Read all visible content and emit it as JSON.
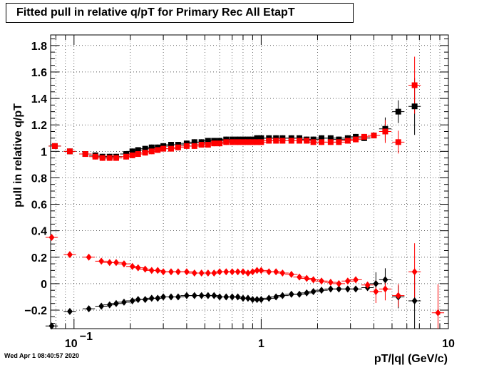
{
  "title": "Fitted pull in relative q/pT for Primary Rec All EtapT",
  "footer": "Wed Apr  1 08:40:57 2020",
  "colors": {
    "series_black": "#000000",
    "series_red": "#ff0000"
  },
  "chart_data": {
    "type": "scatter",
    "xlabel": "pT/|q| (GeV/c)",
    "ylabel": "pull in relative q/pT",
    "x_scale": "log",
    "xlim": [
      0.075,
      10
    ],
    "ylim": [
      -0.34,
      1.88
    ],
    "grid": true,
    "x_tick_labels": [
      "10",
      "1",
      "10"
    ],
    "x_tick_superscript": "−1",
    "y_ticks": [
      -0.2,
      0,
      0.2,
      0.4,
      0.6,
      0.8,
      1,
      1.2,
      1.4,
      1.6,
      1.8
    ],
    "y_tick_labels": [
      "−0.2",
      "0",
      "0.2",
      "0.4",
      "0.6",
      "0.8",
      "1",
      "1.2",
      "1.4",
      "1.6",
      "1.8"
    ],
    "series": [
      {
        "color": "black",
        "marker": "square",
        "points": [
          [
            0.079,
            1.04
          ],
          [
            0.095,
            1.0
          ],
          [
            0.115,
            0.98
          ],
          [
            0.13,
            0.97
          ],
          [
            0.142,
            0.96
          ],
          [
            0.155,
            0.96
          ],
          [
            0.168,
            0.96
          ],
          [
            0.19,
            0.98
          ],
          [
            0.205,
            1.0
          ],
          [
            0.22,
            1.01
          ],
          [
            0.24,
            1.02
          ],
          [
            0.26,
            1.03
          ],
          [
            0.28,
            1.03
          ],
          [
            0.3,
            1.04
          ],
          [
            0.33,
            1.05
          ],
          [
            0.36,
            1.05
          ],
          [
            0.4,
            1.06
          ],
          [
            0.44,
            1.07
          ],
          [
            0.48,
            1.07
          ],
          [
            0.52,
            1.08
          ],
          [
            0.56,
            1.08
          ],
          [
            0.6,
            1.08
          ],
          [
            0.65,
            1.09
          ],
          [
            0.7,
            1.09
          ],
          [
            0.75,
            1.09
          ],
          [
            0.8,
            1.09
          ],
          [
            0.85,
            1.09
          ],
          [
            0.9,
            1.09
          ],
          [
            0.95,
            1.1
          ],
          [
            1.0,
            1.1
          ],
          [
            1.1,
            1.1
          ],
          [
            1.2,
            1.1
          ],
          [
            1.3,
            1.1
          ],
          [
            1.45,
            1.1
          ],
          [
            1.6,
            1.1
          ],
          [
            1.75,
            1.09
          ],
          [
            1.9,
            1.09
          ],
          [
            2.1,
            1.1
          ],
          [
            2.35,
            1.1
          ],
          [
            2.6,
            1.09
          ],
          [
            2.9,
            1.1
          ],
          [
            3.2,
            1.11
          ],
          [
            3.55,
            1.1
          ],
          [
            4.0,
            1.12
          ],
          [
            4.6,
            1.17
          ],
          [
            5.4,
            1.3
          ],
          [
            6.6,
            1.34
          ]
        ]
      },
      {
        "color": "red",
        "marker": "square",
        "points": [
          [
            0.079,
            1.04
          ],
          [
            0.095,
            1.0
          ],
          [
            0.115,
            0.98
          ],
          [
            0.13,
            0.96
          ],
          [
            0.142,
            0.95
          ],
          [
            0.155,
            0.95
          ],
          [
            0.168,
            0.95
          ],
          [
            0.19,
            0.96
          ],
          [
            0.205,
            0.97
          ],
          [
            0.22,
            0.98
          ],
          [
            0.24,
            0.99
          ],
          [
            0.26,
            1.0
          ],
          [
            0.28,
            1.01
          ],
          [
            0.3,
            1.02
          ],
          [
            0.33,
            1.02
          ],
          [
            0.36,
            1.03
          ],
          [
            0.4,
            1.04
          ],
          [
            0.44,
            1.04
          ],
          [
            0.48,
            1.05
          ],
          [
            0.52,
            1.05
          ],
          [
            0.56,
            1.06
          ],
          [
            0.6,
            1.06
          ],
          [
            0.65,
            1.07
          ],
          [
            0.7,
            1.07
          ],
          [
            0.75,
            1.07
          ],
          [
            0.8,
            1.07
          ],
          [
            0.85,
            1.07
          ],
          [
            0.9,
            1.07
          ],
          [
            0.95,
            1.07
          ],
          [
            1.0,
            1.07
          ],
          [
            1.1,
            1.08
          ],
          [
            1.2,
            1.08
          ],
          [
            1.3,
            1.08
          ],
          [
            1.45,
            1.08
          ],
          [
            1.6,
            1.08
          ],
          [
            1.75,
            1.08
          ],
          [
            1.9,
            1.07
          ],
          [
            2.1,
            1.07
          ],
          [
            2.35,
            1.07
          ],
          [
            2.6,
            1.07
          ],
          [
            2.9,
            1.08
          ],
          [
            3.2,
            1.09
          ],
          [
            3.55,
            1.11
          ],
          [
            4.0,
            1.12
          ],
          [
            4.6,
            1.15
          ],
          [
            5.4,
            1.07
          ],
          [
            6.6,
            1.5
          ]
        ]
      },
      {
        "color": "black",
        "marker": "diamond",
        "points": [
          [
            0.076,
            -0.32
          ],
          [
            0.095,
            -0.21
          ],
          [
            0.12,
            -0.19
          ],
          [
            0.14,
            -0.17
          ],
          [
            0.155,
            -0.16
          ],
          [
            0.168,
            -0.15
          ],
          [
            0.185,
            -0.14
          ],
          [
            0.205,
            -0.13
          ],
          [
            0.22,
            -0.12
          ],
          [
            0.24,
            -0.12
          ],
          [
            0.26,
            -0.11
          ],
          [
            0.28,
            -0.11
          ],
          [
            0.3,
            -0.1
          ],
          [
            0.33,
            -0.1
          ],
          [
            0.36,
            -0.1
          ],
          [
            0.4,
            -0.09
          ],
          [
            0.44,
            -0.09
          ],
          [
            0.48,
            -0.09
          ],
          [
            0.52,
            -0.09
          ],
          [
            0.56,
            -0.09
          ],
          [
            0.6,
            -0.1
          ],
          [
            0.65,
            -0.1
          ],
          [
            0.7,
            -0.1
          ],
          [
            0.75,
            -0.1
          ],
          [
            0.8,
            -0.11
          ],
          [
            0.85,
            -0.11
          ],
          [
            0.9,
            -0.12
          ],
          [
            0.95,
            -0.12
          ],
          [
            1.0,
            -0.12
          ],
          [
            1.1,
            -0.11
          ],
          [
            1.2,
            -0.1
          ],
          [
            1.3,
            -0.09
          ],
          [
            1.45,
            -0.08
          ],
          [
            1.6,
            -0.08
          ],
          [
            1.75,
            -0.07
          ],
          [
            1.9,
            -0.06
          ],
          [
            2.1,
            -0.05
          ],
          [
            2.35,
            -0.04
          ],
          [
            2.6,
            -0.04
          ],
          [
            2.9,
            -0.04
          ],
          [
            3.2,
            -0.04
          ],
          [
            3.7,
            -0.03
          ],
          [
            4.1,
            0.0
          ],
          [
            4.6,
            0.03
          ],
          [
            5.4,
            -0.1
          ],
          [
            6.6,
            -0.13
          ]
        ]
      },
      {
        "color": "red",
        "marker": "diamond",
        "points": [
          [
            0.076,
            0.35
          ],
          [
            0.095,
            0.22
          ],
          [
            0.12,
            0.2
          ],
          [
            0.14,
            0.17
          ],
          [
            0.155,
            0.16
          ],
          [
            0.168,
            0.16
          ],
          [
            0.185,
            0.15
          ],
          [
            0.205,
            0.13
          ],
          [
            0.22,
            0.12
          ],
          [
            0.24,
            0.11
          ],
          [
            0.26,
            0.1
          ],
          [
            0.28,
            0.1
          ],
          [
            0.3,
            0.09
          ],
          [
            0.33,
            0.09
          ],
          [
            0.36,
            0.09
          ],
          [
            0.4,
            0.09
          ],
          [
            0.44,
            0.08
          ],
          [
            0.48,
            0.08
          ],
          [
            0.52,
            0.08
          ],
          [
            0.56,
            0.08
          ],
          [
            0.6,
            0.09
          ],
          [
            0.65,
            0.09
          ],
          [
            0.7,
            0.09
          ],
          [
            0.75,
            0.09
          ],
          [
            0.8,
            0.09
          ],
          [
            0.85,
            0.08
          ],
          [
            0.9,
            0.09
          ],
          [
            0.95,
            0.1
          ],
          [
            1.0,
            0.1
          ],
          [
            1.1,
            0.09
          ],
          [
            1.2,
            0.09
          ],
          [
            1.3,
            0.08
          ],
          [
            1.45,
            0.07
          ],
          [
            1.6,
            0.05
          ],
          [
            1.75,
            0.04
          ],
          [
            1.9,
            0.03
          ],
          [
            2.1,
            0.02
          ],
          [
            2.35,
            0.01
          ],
          [
            2.6,
            0.0
          ],
          [
            2.9,
            0.02
          ],
          [
            3.2,
            0.03
          ],
          [
            3.7,
            -0.01
          ],
          [
            4.1,
            -0.06
          ],
          [
            4.6,
            -0.04
          ],
          [
            5.4,
            -0.09
          ],
          [
            6.6,
            0.09
          ],
          [
            8.8,
            -0.22
          ]
        ]
      }
    ]
  }
}
